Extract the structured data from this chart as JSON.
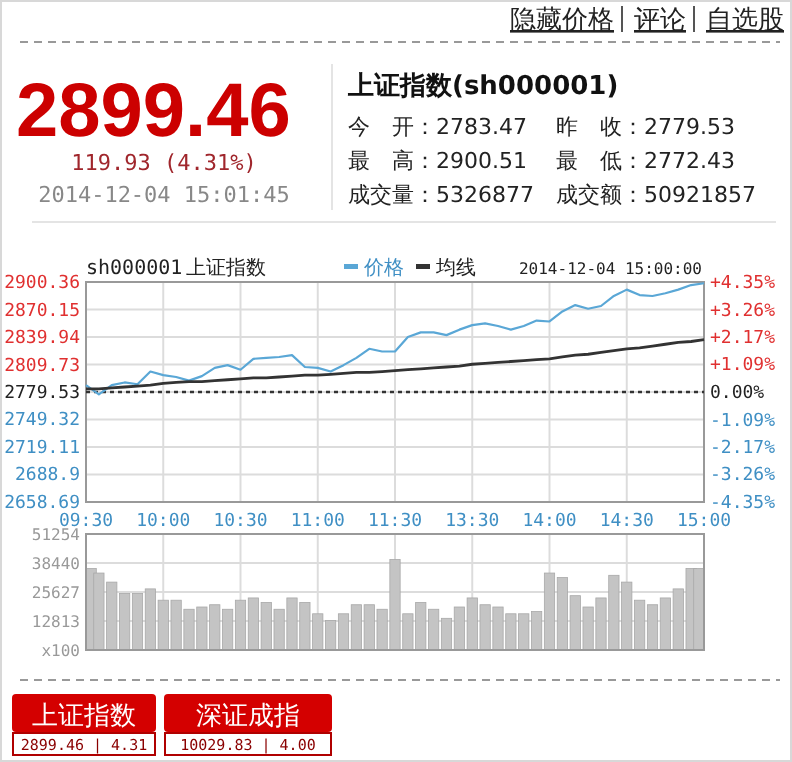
{
  "chart_data": [
    {
      "type": "other",
      "annotations": [
        "隐藏价格",
        "评论",
        "自选股",
        "2899.46",
        "119.93 (4.31%)",
        "2014-12-04 15:01:45",
        "上证指数(sh000001)",
        "今　开：2783.47",
        "昨　收：2779.53",
        "最　高：2900.51",
        "最　低：2772.43",
        "成交量：5326877",
        "成交额：50921857"
      ]
    },
    {
      "type": "line",
      "subtitle": "sh000001",
      "title": "上证指数",
      "annotations": [
        "2014-12-04 15:00:00"
      ],
      "categories": [
        "09:30",
        null,
        null,
        null,
        null,
        null,
        "10:00",
        null,
        null,
        null,
        null,
        null,
        "10:30",
        null,
        null,
        null,
        null,
        null,
        "11:00",
        null,
        null,
        null,
        null,
        null,
        "11:30",
        null,
        null,
        null,
        null,
        null,
        "13:30",
        null,
        null,
        null,
        null,
        null,
        "14:00",
        null,
        null,
        null,
        null,
        null,
        "14:30",
        null,
        null,
        null,
        null,
        null,
        "15:00"
      ],
      "ylim": [
        2658.69,
        2900.36
      ],
      "yticks": [
        2658.69,
        2688.9,
        2719.11,
        2749.32,
        2779.53,
        2809.73,
        2839.94,
        2870.15,
        2900.36
      ],
      "y2lim": [
        -4.35,
        4.35
      ],
      "y2ticks": [
        {
          "value": -4.35,
          "label": "-4.35%"
        },
        {
          "value": -3.26,
          "label": "-3.26%"
        },
        {
          "value": -2.17,
          "label": "-2.17%"
        },
        {
          "value": -1.09,
          "label": "-1.09%"
        },
        {
          "value": 0,
          "label": "0.00%"
        },
        {
          "value": 1.09,
          "label": "+1.09%"
        },
        {
          "value": 2.17,
          "label": "+2.17%"
        },
        {
          "value": 3.26,
          "label": "+3.26%"
        },
        {
          "value": 4.35,
          "label": "+4.35%"
        }
      ],
      "series": [
        {
          "name": "价格",
          "color": "#5aa7d6",
          "values": [
            2787,
            2777,
            2787,
            2790,
            2788,
            2802,
            2798,
            2796,
            2792,
            2797,
            2806,
            2809,
            2804,
            2816,
            2817,
            2818,
            2820,
            2807,
            2806,
            2802,
            2809,
            2817,
            2827,
            2824,
            2824,
            2840,
            2845,
            2845,
            2842,
            2848,
            2853,
            2855,
            2852,
            2848,
            2852,
            2858,
            2857,
            2868,
            2875,
            2871,
            2874,
            2885,
            2892,
            2886,
            2885,
            2888,
            2892,
            2897,
            2899
          ]
        },
        {
          "name": "均线",
          "color": "#333333",
          "values": [
            2783,
            2783,
            2784,
            2785,
            2786,
            2787,
            2789,
            2790,
            2791,
            2791,
            2792,
            2793,
            2794,
            2795,
            2795,
            2796,
            2797,
            2798,
            2798,
            2799,
            2800,
            2801,
            2801,
            2802,
            2803,
            2804,
            2805,
            2806,
            2807,
            2808,
            2810,
            2811,
            2812,
            2813,
            2814,
            2815,
            2816,
            2818,
            2820,
            2821,
            2823,
            2825,
            2827,
            2828,
            2830,
            2832,
            2834,
            2835,
            2837
          ]
        }
      ],
      "ref_lines": [
        {
          "axis": "y",
          "value": 2779.53,
          "line_style": "dotted",
          "color": "#333333"
        }
      ],
      "grid": true,
      "legend": "top"
    },
    {
      "type": "bar",
      "color": "#c4c4c4",
      "tick_labels": "y",
      "categories": [
        null,
        null,
        null,
        null,
        null,
        null,
        null,
        null,
        null,
        null,
        null,
        null,
        null,
        null,
        null,
        null,
        null,
        null,
        null,
        null,
        null,
        null,
        null,
        null,
        null,
        null,
        null,
        null,
        null,
        null,
        null,
        null,
        null,
        null,
        null,
        null,
        null,
        null,
        null,
        null,
        null,
        null,
        null,
        null,
        null,
        null,
        null,
        null,
        null
      ],
      "ylim": [
        0,
        51254
      ],
      "yticks": [
        {
          "value": 0,
          "label": "x100"
        },
        12813,
        25627,
        38440,
        51254
      ],
      "grid": true,
      "values": [
        36000,
        34000,
        30000,
        25000,
        25000,
        27000,
        22000,
        22000,
        18000,
        19000,
        20000,
        18000,
        22000,
        23000,
        21000,
        18000,
        23000,
        21000,
        16000,
        13000,
        16000,
        20000,
        20000,
        18000,
        40000,
        16000,
        21000,
        18000,
        14000,
        19000,
        23000,
        20000,
        19000,
        16000,
        16000,
        17000,
        34000,
        32000,
        24000,
        19000,
        23000,
        33000,
        30000,
        22000,
        20000,
        23000,
        27000,
        36000,
        36000
      ]
    },
    {
      "type": "other",
      "annotations": [
        "上证指数",
        "2899.46 | 4.31",
        "深证成指",
        "10029.83 | 4.00"
      ]
    }
  ]
}
